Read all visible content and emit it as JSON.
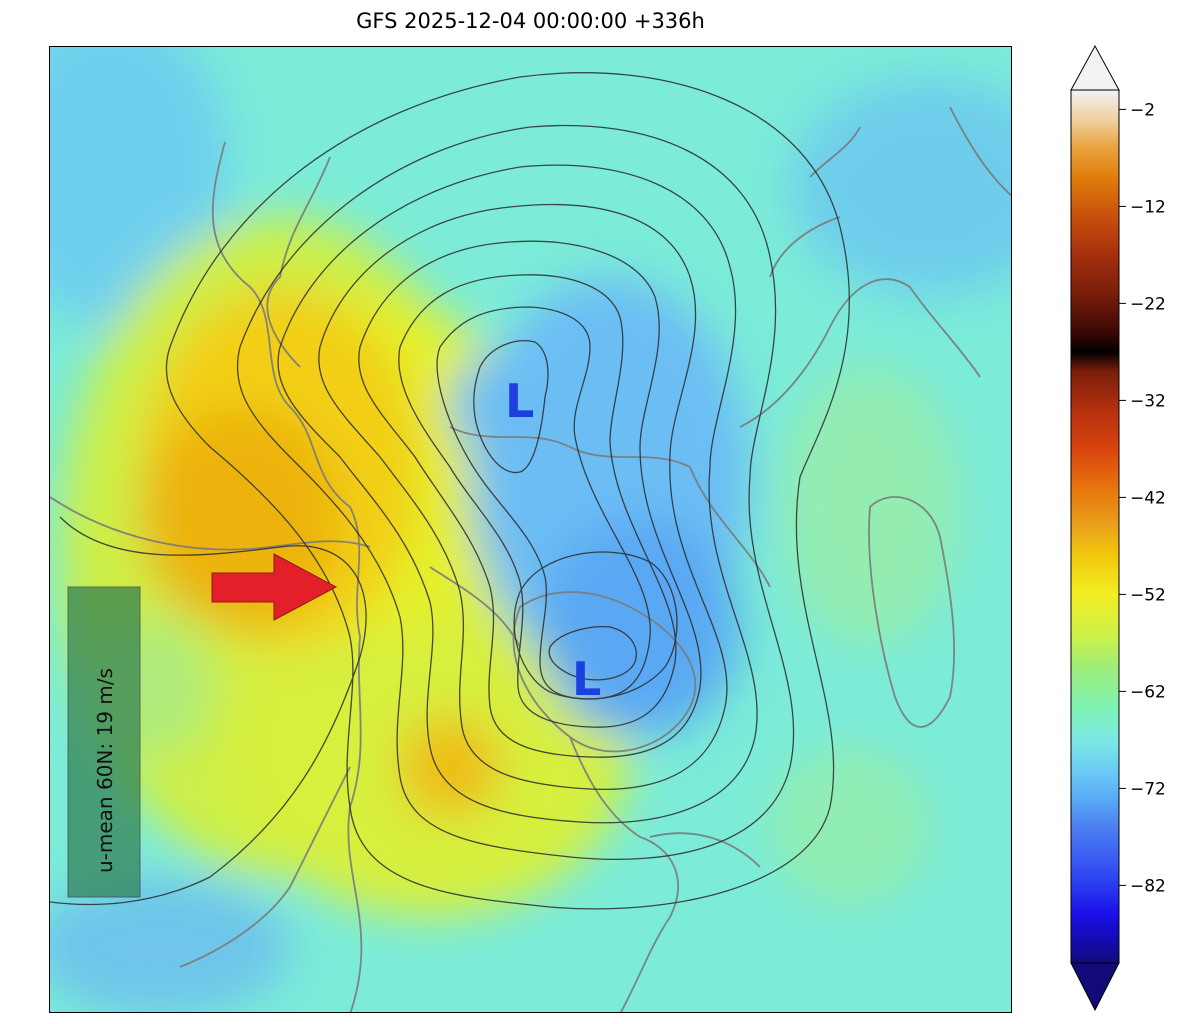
{
  "title": "GFS 2025-12-04 00:00:00 +336h",
  "annotation": {
    "text": "u-mean 60N: 19 m/s",
    "arrow_color": "#e3202a",
    "box_color": "#2e7d4f"
  },
  "lows": [
    {
      "label": "L"
    },
    {
      "label": "L"
    }
  ],
  "low_color": "#1d3fe0",
  "colorbar": {
    "tick_labels": [
      "-2",
      "-12",
      "-22",
      "-32",
      "-42",
      "-52",
      "-62",
      "-72",
      "-82"
    ],
    "range": [
      -90,
      0
    ],
    "extend": "both",
    "color_stops": [
      {
        "value": 0,
        "color": "#f2f2f2"
      },
      {
        "value": -3,
        "color": "#f0d1a3"
      },
      {
        "value": -6,
        "color": "#e9a23c"
      },
      {
        "value": -9,
        "color": "#e07e0c"
      },
      {
        "value": -13,
        "color": "#c9500d"
      },
      {
        "value": -17,
        "color": "#a4300d"
      },
      {
        "value": -21,
        "color": "#7a1e0a"
      },
      {
        "value": -25,
        "color": "#3a0806"
      },
      {
        "value": -27,
        "color": "#000000"
      },
      {
        "value": -29,
        "color": "#7a1e0a"
      },
      {
        "value": -33,
        "color": "#b5300f"
      },
      {
        "value": -37,
        "color": "#d9430f"
      },
      {
        "value": -41,
        "color": "#e8740d"
      },
      {
        "value": -45,
        "color": "#e9a11a"
      },
      {
        "value": -48,
        "color": "#f2c80c"
      },
      {
        "value": -52,
        "color": "#f2ef22"
      },
      {
        "value": -56,
        "color": "#cff045"
      },
      {
        "value": -60,
        "color": "#99ee7f"
      },
      {
        "value": -64,
        "color": "#7ef2b8"
      },
      {
        "value": -67,
        "color": "#7ce8e4"
      },
      {
        "value": -70,
        "color": "#6ccdf5"
      },
      {
        "value": -73,
        "color": "#5aabf5"
      },
      {
        "value": -76,
        "color": "#4b7ff0"
      },
      {
        "value": -79,
        "color": "#3b5ff3"
      },
      {
        "value": -82,
        "color": "#2a3bf1"
      },
      {
        "value": -85,
        "color": "#1b0fe9"
      },
      {
        "value": -88,
        "color": "#140aa8"
      },
      {
        "value": -90,
        "color": "#130a7a"
      }
    ]
  }
}
